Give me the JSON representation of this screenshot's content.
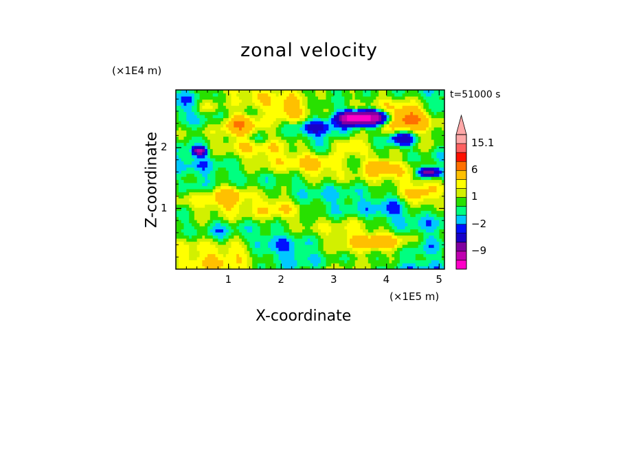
{
  "chart_data": {
    "type": "heatmap",
    "title": "zonal velocity",
    "xlabel": "X-coordinate",
    "ylabel": "Z-coordinate",
    "x_unit_label": "(×1E5 m)",
    "y_unit_label": "(×1E4 m)",
    "time_label": "t=51000 s",
    "xlim": [
      0,
      5.1
    ],
    "ylim": [
      0,
      2.95
    ],
    "x_ticks": [
      "1",
      "2",
      "3",
      "4",
      "5"
    ],
    "y_ticks": [
      "1",
      "2"
    ],
    "colorbar": {
      "tick_labels": [
        "15.1",
        "6",
        "1",
        "−2",
        "−9"
      ],
      "levels": [
        -15,
        -12,
        -9,
        -6,
        -3,
        -2,
        -1,
        0,
        1,
        2,
        3,
        6,
        9,
        12,
        15.1
      ],
      "colors": [
        "#ff00c8",
        "#c000b0",
        "#8000a0",
        "#1800c8",
        "#0010ff",
        "#00c8ff",
        "#00ff80",
        "#28e000",
        "#d2f000",
        "#ffff00",
        "#ffc000",
        "#ff7000",
        "#ff1000",
        "#ff6060",
        "#ffa8a8"
      ],
      "extend_top": true
    }
  }
}
